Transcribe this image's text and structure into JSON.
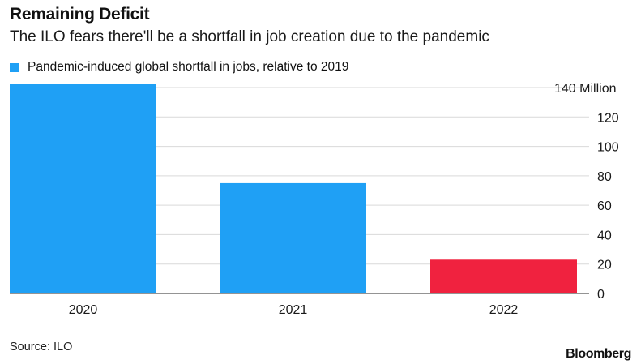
{
  "header": {
    "title": "Remaining Deficit",
    "subtitle": "The ILO fears there'll be a shortfall in job creation due to the pandemic"
  },
  "legend": {
    "label": "Pandemic-induced global shortfall in jobs, relative to 2019",
    "color": "#1fa0f5"
  },
  "chart_data": {
    "type": "bar",
    "categories": [
      "2020",
      "2021",
      "2022"
    ],
    "series": [
      {
        "name": "Pandemic-induced global shortfall in jobs, relative to 2019",
        "values": [
          144,
          75,
          23
        ]
      }
    ],
    "bar_colors": [
      "#1fa0f5",
      "#1fa0f5",
      "#f0223f"
    ],
    "ylim": [
      0,
      140
    ],
    "yticks": [
      0,
      20,
      40,
      60,
      80,
      100,
      120,
      140
    ],
    "ytick_labels": [
      "0",
      "20",
      "40",
      "60",
      "80",
      "100",
      "120",
      "140 Million"
    ],
    "y_axis_side": "right",
    "grid": true
  },
  "footer": {
    "source": "Source: ILO",
    "brand": "Bloomberg"
  }
}
